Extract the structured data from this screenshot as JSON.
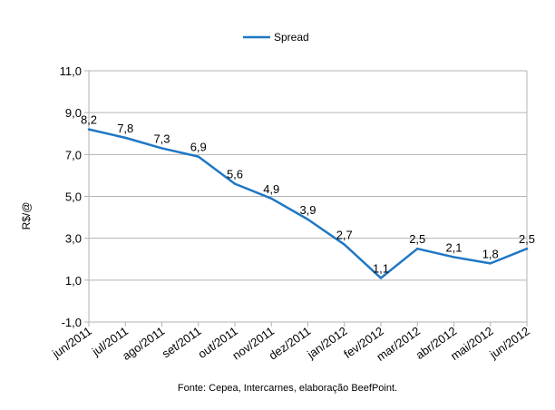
{
  "chart_data": {
    "type": "line",
    "categories": [
      "jun/2011",
      "jul/2011",
      "ago/2011",
      "set/2011",
      "out/2011",
      "nov/2011",
      "dez/2011",
      "jan/2012",
      "fev/2012",
      "mar/2012",
      "abr/2012",
      "mai/2012",
      "jun/2012"
    ],
    "series": [
      {
        "name": "Spread",
        "color": "#1f77c4",
        "values": [
          8.2,
          7.8,
          7.3,
          6.9,
          5.6,
          4.9,
          3.9,
          2.7,
          1.1,
          2.5,
          2.1,
          1.8,
          2.5
        ],
        "labels": [
          "8,2",
          "7,8",
          "7,3",
          "6,9",
          "5,6",
          "4,9",
          "3,9",
          "2,7",
          "1,1",
          "2,5",
          "2,1",
          "1,8",
          "2,5"
        ]
      }
    ],
    "ylabel": "R$/@",
    "ylim": [
      -1,
      11
    ],
    "yticks": [
      -1,
      1,
      3,
      5,
      7,
      9,
      11
    ],
    "ytick_labels": [
      "-1,0",
      "1,0",
      "3,0",
      "5,0",
      "7,0",
      "9,0",
      "11,0"
    ],
    "grid": true,
    "legend": "top-center",
    "source_note": "Fonte: Cepea, Intercarnes, elaboração BeefPoint."
  }
}
